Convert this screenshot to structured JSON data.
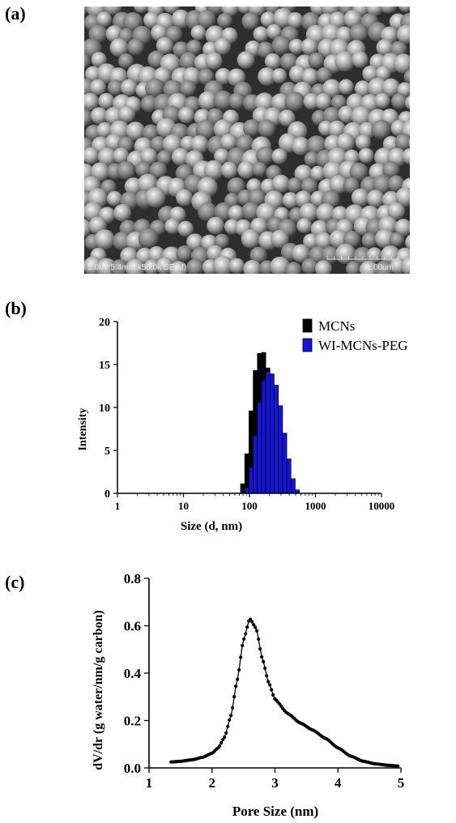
{
  "panels": {
    "a": "(a)",
    "b": "(b)",
    "c": "(c)"
  },
  "sem": {
    "info": "5.0kV 5.4mm x50.0k SE(M)",
    "scale_bar": "1.00um"
  },
  "colors": {
    "mcns": "#000000",
    "wi_mcns_peg": "#1515d8"
  },
  "chart_data": [
    {
      "type": "bar",
      "xscale": "log",
      "xlabel": "Size (d, nm)",
      "ylabel": "Intensity",
      "xticks": [
        "1",
        "10",
        "100",
        "1000",
        "10000"
      ],
      "yticks": [
        "0",
        "5",
        "10",
        "15",
        "20"
      ],
      "xlim": [
        1,
        10000
      ],
      "ylim": [
        0,
        20
      ],
      "legend_position": "top-right",
      "series": [
        {
          "name": "MCNs",
          "x": [
            78.8,
            91.3,
            105.7,
            122.4,
            141.8,
            164.2,
            190.1,
            220.2,
            255.0,
            295.3,
            342.0,
            396.1
          ],
          "values": [
            1.1,
            4.6,
            9.6,
            14.3,
            16.3,
            16.4,
            14.6,
            11.7,
            8.3,
            4.6,
            1.6,
            0.2
          ]
        },
        {
          "name": "WI-MCNs-PEG",
          "x": [
            91.3,
            105.7,
            122.4,
            141.8,
            164.2,
            190.1,
            220.2,
            255.0,
            295.3,
            342.0,
            396.1,
            458.7,
            531.2
          ],
          "values": [
            0.6,
            3.0,
            6.7,
            10.6,
            13.2,
            14.2,
            13.9,
            12.6,
            10.2,
            7.0,
            4.0,
            1.7,
            0.4
          ]
        }
      ]
    },
    {
      "type": "scatter",
      "xlabel": "Pore Size (nm)",
      "ylabel": "dV/dr (g water/nm/g carbon)",
      "xticks": [
        "1",
        "2",
        "3",
        "4",
        "5"
      ],
      "yticks": [
        "0.0",
        "0.2",
        "0.4",
        "0.6",
        "0.8"
      ],
      "xlim": [
        1,
        5
      ],
      "ylim": [
        0,
        0.8
      ],
      "curve_points": [
        [
          1.35,
          0.025
        ],
        [
          1.5,
          0.028
        ],
        [
          1.7,
          0.035
        ],
        [
          1.85,
          0.045
        ],
        [
          2.0,
          0.062
        ],
        [
          2.1,
          0.085
        ],
        [
          2.2,
          0.13
        ],
        [
          2.3,
          0.22
        ],
        [
          2.4,
          0.37
        ],
        [
          2.5,
          0.54
        ],
        [
          2.6,
          0.63
        ],
        [
          2.7,
          0.59
        ],
        [
          2.8,
          0.46
        ],
        [
          2.9,
          0.36
        ],
        [
          3.0,
          0.29
        ],
        [
          3.2,
          0.23
        ],
        [
          3.4,
          0.19
        ],
        [
          3.6,
          0.16
        ],
        [
          3.8,
          0.125
        ],
        [
          4.0,
          0.085
        ],
        [
          4.2,
          0.05
        ],
        [
          4.4,
          0.028
        ],
        [
          4.6,
          0.017
        ],
        [
          4.8,
          0.011
        ],
        [
          4.95,
          0.008
        ]
      ]
    }
  ]
}
